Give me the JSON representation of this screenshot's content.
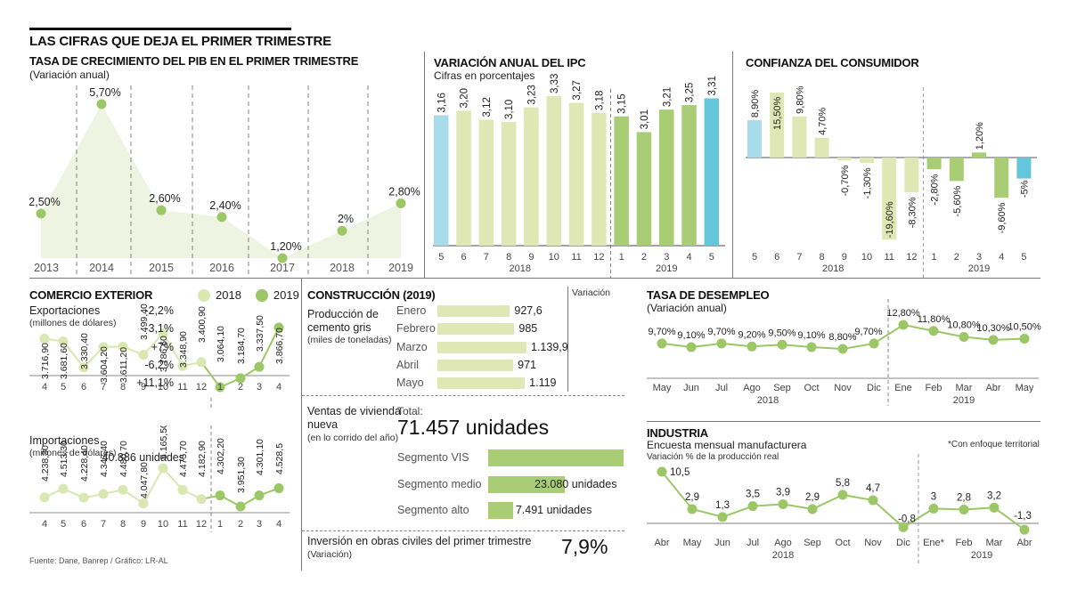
{
  "header": {
    "title": "LAS CIFRAS QUE DEJA EL PRIMER TRIMESTRE"
  },
  "colors": {
    "light_green": "#dfe8b4",
    "green": "#a8cd74",
    "light_blue": "#a9dcea",
    "blue": "#64c6da",
    "area_fill": "#eef3e2",
    "dot_light": "#d9e7b0",
    "dot_green": "#9cc766"
  },
  "source": "Fuente: Dane, Banrep / Gráfico: LR-AL",
  "chart_data": [
    {
      "id": "pib",
      "type": "area",
      "title": "TASA DE CRECIMIENTO DEL PIB EN EL PRIMER TRIMESTRE",
      "subtitle": "(Variación anual)",
      "categories": [
        "2013",
        "2014",
        "2015",
        "2016",
        "2017",
        "2018",
        "2019"
      ],
      "values": [
        2.5,
        5.7,
        2.6,
        2.4,
        1.2,
        2.0,
        2.8
      ],
      "labels": [
        "2,50%",
        "5,70%",
        "2,60%",
        "2,40%",
        "1,20%",
        "2%",
        "2,80%"
      ],
      "ylim": [
        1.2,
        5.7
      ],
      "grid": "vertical dashed"
    },
    {
      "id": "ipc",
      "type": "bar",
      "title": "VARIACIÓN ANUAL DEL IPC",
      "subtitle": "Cifras en porcentajes",
      "categories": [
        "5",
        "6",
        "7",
        "8",
        "9",
        "10",
        "11",
        "12",
        "1",
        "2",
        "3",
        "4",
        "5"
      ],
      "groups": [
        {
          "label": "2018",
          "from": 0,
          "to": 7
        },
        {
          "label": "2019",
          "from": 8,
          "to": 12
        }
      ],
      "values": [
        3.16,
        3.2,
        3.12,
        3.1,
        3.23,
        3.33,
        3.27,
        3.18,
        3.15,
        3.01,
        3.21,
        3.25,
        3.31
      ],
      "labels": [
        "3,16",
        "3,20",
        "3,12",
        "3,10",
        "3,23",
        "3,33",
        "3,27",
        "3,18",
        "3,15",
        "3,01",
        "3,21",
        "3,25",
        "3,31"
      ],
      "bar_colors": [
        "light_blue",
        "light_green",
        "light_green",
        "light_green",
        "light_green",
        "light_green",
        "light_green",
        "light_green",
        "green",
        "green",
        "green",
        "green",
        "blue"
      ]
    },
    {
      "id": "confianza",
      "type": "bar",
      "title": "CONFIANZA DEL CONSUMIDOR",
      "categories": [
        "5",
        "6",
        "7",
        "8",
        "9",
        "10",
        "11",
        "12",
        "1",
        "2",
        "3",
        "4",
        "5"
      ],
      "groups": [
        {
          "label": "2018",
          "from": 0,
          "to": 7
        },
        {
          "label": "2019",
          "from": 8,
          "to": 12
        }
      ],
      "values": [
        8.9,
        15.5,
        9.8,
        4.7,
        -0.7,
        -1.3,
        -19.6,
        -8.3,
        -2.8,
        -5.6,
        1.2,
        -9.6,
        -5.0
      ],
      "labels": [
        "8,90%",
        "15,50%",
        "9,80%",
        "4,70%",
        "-0,70%",
        "-1,30%",
        "-19,60%",
        "-8,30%",
        "-2,80%",
        "-5,60%",
        "1,20%",
        "-9,60%",
        "-5%"
      ],
      "bar_colors": [
        "light_blue",
        "light_green",
        "light_green",
        "light_green",
        "light_green",
        "light_green",
        "light_green",
        "light_green",
        "green",
        "green",
        "green",
        "green",
        "blue"
      ]
    },
    {
      "id": "exportaciones",
      "type": "line",
      "title": "Exportaciones",
      "subtitle": "(millones de dólares)",
      "categories": [
        "4",
        "5",
        "6",
        "7",
        "8",
        "9",
        "10",
        "11",
        "12",
        "1",
        "2",
        "3",
        "4"
      ],
      "values": [
        3716.9,
        3681.6,
        3330.4,
        3604.2,
        3611.2,
        3499.4,
        3786.6,
        3348.9,
        3400.9,
        3064.1,
        3184.7,
        3337.5,
        3866.7
      ],
      "labels": [
        "3.716,90",
        "3.681,60",
        "3.330,40",
        "3.604,20",
        "3.611,20",
        "3.499,40",
        "3.786,60",
        "3.348,90",
        "3.400,90",
        "3.064,10",
        "3.184,70",
        "3.337,50",
        "3.866,70"
      ],
      "series_split": 9
    },
    {
      "id": "importaciones",
      "type": "line",
      "title": "Importaciones",
      "subtitle": "(millones de dólares)",
      "categories": [
        "4",
        "5",
        "6",
        "7",
        "8",
        "9",
        "10",
        "11",
        "12",
        "1",
        "2",
        "3",
        "4"
      ],
      "values": [
        4238.3,
        4513.3,
        4228.4,
        4347.4,
        4480.7,
        4047.8,
        5165.5,
        4475.7,
        4182.9,
        4302.2,
        3951.3,
        4301.1,
        4528.5
      ],
      "labels": [
        "4.238,30",
        "4.513,30",
        "4.228,40",
        "4.347,40",
        "4.480,70",
        "4.047,80",
        "5.165,50",
        "4.475,70",
        "4.182,90",
        "4.302,20",
        "3.951,30",
        "4.301,10",
        "4.528,5"
      ],
      "series_split": 9
    },
    {
      "id": "cemento",
      "type": "bar",
      "title": "Producción de cemento gris",
      "subtitle": "(miles de toneladas)",
      "categories": [
        "Enero",
        "Febrero",
        "Marzo",
        "Abril",
        "Mayo"
      ],
      "values": [
        927.6,
        985,
        1139.9,
        971,
        1119
      ],
      "labels": [
        "927,6",
        "985",
        "1.139,9",
        "971",
        "1.119"
      ],
      "variation_header": "Variación",
      "variation": [
        "-2,2%",
        "-3,1%",
        "+7%",
        "-6,2%",
        "+11,1%"
      ]
    },
    {
      "id": "vivienda",
      "type": "bar",
      "title": "Ventas de vivienda nueva",
      "subtitle": "(en lo corrido del año)",
      "total_label": "Total:",
      "total_value": "71.457 unidades",
      "categories": [
        "Segmento VIS",
        "Segmento medio",
        "Segmento alto"
      ],
      "values": [
        40886,
        23080,
        7491
      ],
      "labels": [
        "40.886 unidades",
        "23.080 unidades",
        "7.491 unidades"
      ]
    },
    {
      "id": "desempleo",
      "type": "line",
      "title": "TASA DE DESEMPLEO",
      "subtitle": "(Variación anual)",
      "categories": [
        "May",
        "Jun",
        "Jul",
        "Ago",
        "Sep",
        "Oct",
        "Nov",
        "Dic",
        "Ene",
        "Feb",
        "Mar",
        "Abr",
        "May"
      ],
      "groups": [
        {
          "label": "2018",
          "from": 0,
          "to": 7
        },
        {
          "label": "2019",
          "from": 8,
          "to": 12
        }
      ],
      "values": [
        9.7,
        9.1,
        9.7,
        9.2,
        9.5,
        9.1,
        8.8,
        9.7,
        12.8,
        11.8,
        10.8,
        10.3,
        10.5
      ],
      "labels": [
        "9,70%",
        "9,10%",
        "9,70%",
        "9,20%",
        "9,50%",
        "9,10%",
        "8,80%",
        "9,70%",
        "12,80%",
        "11,80%",
        "10,80%",
        "10,30%",
        "10,50%"
      ]
    },
    {
      "id": "industria",
      "type": "line",
      "title": "INDUSTRIA",
      "subtitle": "Encuesta mensual manufacturera",
      "ylabel": "Variación % de la producción real",
      "note": "*Con enfoque territorial",
      "categories": [
        "Abr",
        "May",
        "Jun",
        "Jul",
        "Ago",
        "Sep",
        "Oct",
        "Nov",
        "Dic",
        "Ene*",
        "Feb",
        "Mar",
        "Abr"
      ],
      "groups": [
        {
          "label": "2018",
          "from": 0,
          "to": 8
        },
        {
          "label": "2019",
          "from": 9,
          "to": 12
        }
      ],
      "values": [
        10.5,
        2.9,
        1.3,
        3.5,
        3.9,
        2.9,
        5.8,
        4.7,
        -0.8,
        3,
        2.8,
        3.2,
        -1.3
      ],
      "labels": [
        "10,5",
        "2,9",
        "1,3",
        "3,5",
        "3,9",
        "2,9",
        "5,8",
        "4,7",
        "-0,8",
        "3",
        "2,8",
        "3,2",
        "-1,3"
      ]
    }
  ],
  "comercio": {
    "title": "COMERCIO EXTERIOR",
    "legend": [
      {
        "label": "2018",
        "color": "dot_light"
      },
      {
        "label": "2019",
        "color": "dot_green"
      }
    ]
  },
  "construccion": {
    "title": "CONSTRUCCIÓN (2019)"
  },
  "obras": {
    "title": "Inversión en obras civiles del primer trimestre",
    "subtitle": "(Variación)",
    "value": "7,9%"
  }
}
